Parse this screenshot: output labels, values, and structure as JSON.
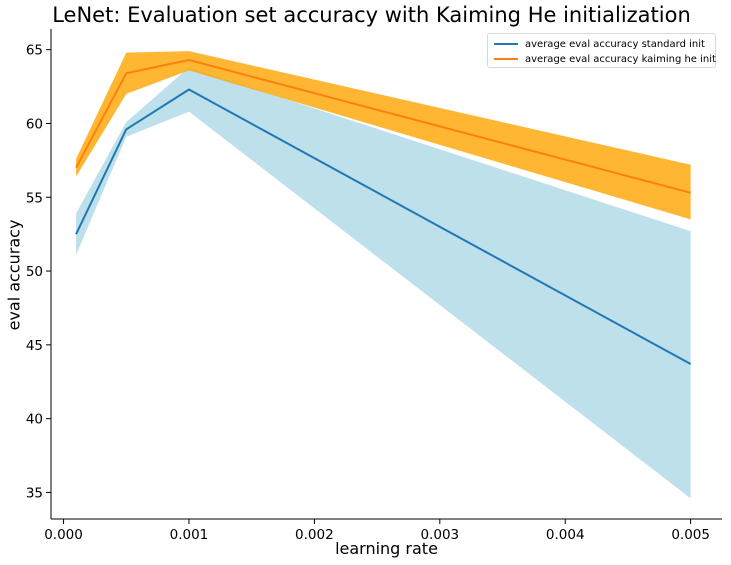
{
  "chart_data": {
    "type": "line",
    "title": "LeNet: Evaluation set accuracy with Kaiming He initialization",
    "xlabel": "learning rate",
    "ylabel": "eval accuracy",
    "xlim": [
      -0.0001,
      0.00525
    ],
    "ylim": [
      33.2,
      66.4
    ],
    "x_ticks": [
      0.0,
      0.001,
      0.002,
      0.003,
      0.004,
      0.005
    ],
    "x_tick_labels": [
      "0.000",
      "0.001",
      "0.002",
      "0.003",
      "0.004",
      "0.005"
    ],
    "y_ticks": [
      35,
      40,
      45,
      50,
      55,
      60,
      65
    ],
    "y_tick_labels": [
      "35",
      "40",
      "45",
      "50",
      "55",
      "60",
      "65"
    ],
    "x": [
      0.0001,
      0.0005,
      0.001,
      0.005
    ],
    "legend_position": "upper-right",
    "series": [
      {
        "name": "average eval accuracy standard init",
        "line_color": "#1f77b4",
        "band_color": "#add8e6",
        "mean": [
          52.5,
          59.6,
          62.3,
          43.7
        ],
        "lower": [
          51.1,
          59.1,
          60.8,
          34.6
        ],
        "upper": [
          53.9,
          60.1,
          63.8,
          52.7
        ]
      },
      {
        "name": "average eval accuracy kaiming he init",
        "line_color": "#ff7f0e",
        "band_color": "#ffa500",
        "mean": [
          57.0,
          63.4,
          64.3,
          55.3
        ],
        "lower": [
          56.4,
          62.0,
          63.6,
          53.5
        ],
        "upper": [
          57.6,
          64.8,
          64.9,
          57.2
        ]
      }
    ]
  }
}
